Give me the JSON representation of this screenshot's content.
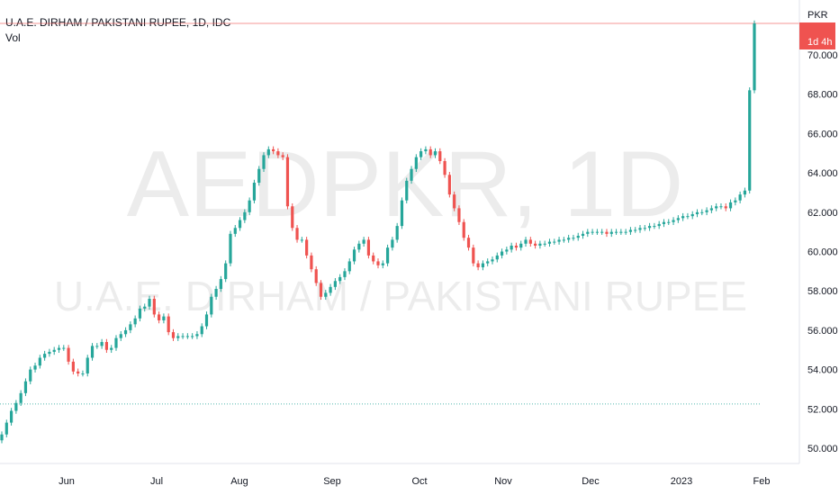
{
  "header": {
    "symbol_title": "U.A.E. DIRHAM / PAKISTANI RUPEE, 1D, IDC",
    "indicator": "Vol"
  },
  "watermark": {
    "ticker": "AEDPKR, 1D",
    "name": "U.A.E. DIRHAM / PAKISTANI RUPEE"
  },
  "price_scale": {
    "currency": "PKR",
    "countdown": "1d 4h"
  },
  "colors": {
    "up": "#26a69a",
    "down": "#ef5350",
    "badge": "#ef5350"
  },
  "chart_data": {
    "type": "candlestick",
    "x_tick_labels": [
      "Jun",
      "Jul",
      "Aug",
      "Sep",
      "Oct",
      "Nov",
      "Dec",
      "2023",
      "Feb"
    ],
    "y_tick_labels": [
      "50.000",
      "52.000",
      "54.000",
      "56.000",
      "58.000",
      "60.000",
      "62.000",
      "64.000",
      "66.000",
      "68.000",
      "70.000"
    ],
    "ylim": [
      49.4,
      72.1
    ],
    "current_price_line": 71.6,
    "reference_line": 52.25,
    "closes": [
      50.7,
      51.3,
      51.9,
      52.3,
      52.8,
      53.4,
      54.0,
      54.2,
      54.6,
      54.8,
      54.9,
      55.0,
      55.1,
      55.1,
      54.4,
      53.9,
      53.8,
      53.8,
      54.6,
      55.2,
      55.2,
      55.4,
      55.0,
      55.1,
      55.6,
      55.8,
      56.0,
      56.3,
      56.6,
      57.1,
      57.2,
      57.6,
      56.8,
      56.5,
      56.7,
      55.9,
      55.6,
      55.7,
      55.7,
      55.7,
      55.7,
      55.8,
      56.2,
      56.8,
      57.7,
      58.1,
      58.6,
      59.4,
      60.9,
      61.2,
      61.6,
      62.0,
      62.6,
      63.5,
      64.2,
      64.9,
      65.2,
      65.1,
      64.9,
      64.8,
      62.3,
      61.2,
      60.6,
      60.6,
      59.8,
      59.1,
      58.4,
      57.7,
      57.9,
      58.2,
      58.5,
      58.7,
      59.0,
      59.5,
      60.1,
      60.4,
      60.6,
      59.8,
      59.5,
      59.3,
      59.4,
      60.2,
      60.6,
      61.3,
      62.6,
      63.6,
      64.2,
      64.8,
      65.1,
      65.2,
      64.9,
      65.1,
      64.6,
      63.9,
      62.9,
      62.2,
      61.5,
      60.7,
      60.2,
      59.4,
      59.2,
      59.4,
      59.5,
      59.6,
      59.8,
      60.0,
      60.1,
      60.3,
      60.2,
      60.4,
      60.6,
      60.4,
      60.3,
      60.4,
      60.4,
      60.5,
      60.5,
      60.6,
      60.6,
      60.7,
      60.7,
      60.8,
      60.9,
      61.0,
      61.0,
      61.0,
      61.0,
      60.9,
      61.0,
      61.0,
      61.0,
      61.0,
      61.1,
      61.1,
      61.2,
      61.2,
      61.3,
      61.3,
      61.4,
      61.5,
      61.5,
      61.6,
      61.7,
      61.8,
      61.8,
      61.9,
      62.0,
      62.0,
      62.1,
      62.2,
      62.3,
      62.3,
      62.2,
      62.5,
      62.6,
      62.9,
      63.1,
      68.2,
      71.6
    ]
  }
}
